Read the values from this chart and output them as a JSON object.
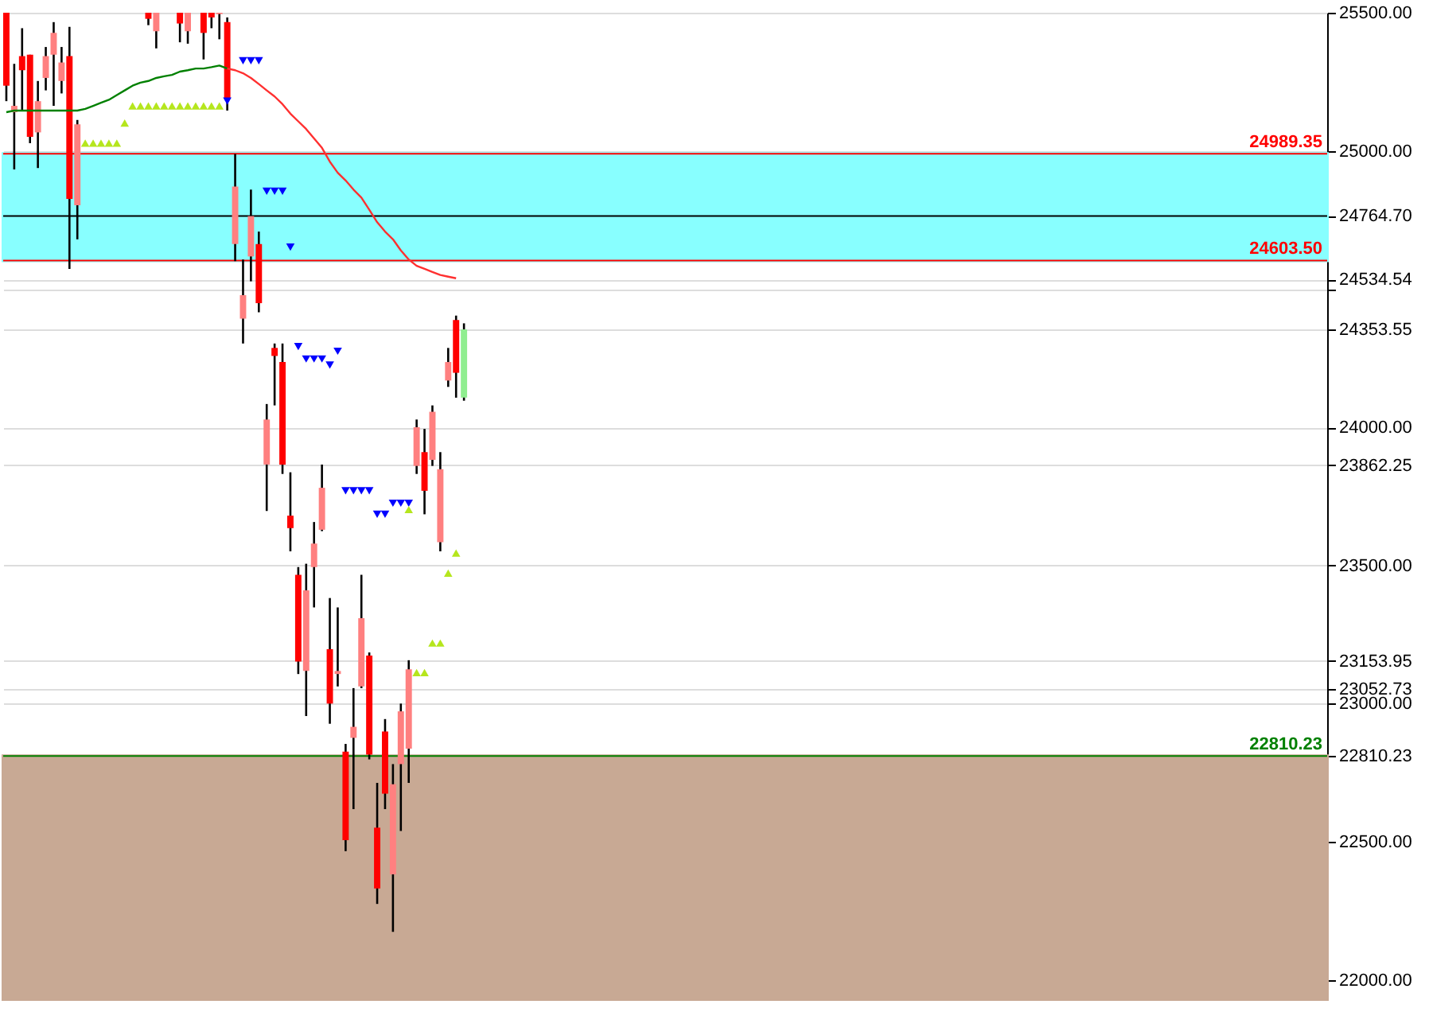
{
  "chart_data": {
    "type": "candlestick",
    "categories": [
      null,
      null,
      null,
      null,
      null,
      null,
      null,
      null,
      null,
      null,
      null,
      null,
      null,
      null,
      null,
      null,
      null,
      null,
      null,
      null,
      null,
      null,
      null,
      null,
      null,
      null,
      null,
      null,
      null,
      null,
      null,
      null,
      null,
      null,
      null,
      null,
      null,
      null,
      null,
      null,
      null,
      null,
      null,
      null,
      null,
      null,
      null,
      null,
      null,
      null,
      null,
      null,
      null,
      null,
      null,
      null,
      null,
      null,
      null,
      null,
      null,
      null,
      null,
      null,
      null,
      null,
      null,
      null,
      null,
      null,
      null,
      null,
      null,
      null,
      null,
      null,
      null,
      null,
      null,
      null,
      null,
      null,
      null,
      null,
      null,
      null,
      null,
      null,
      null,
      null,
      null,
      null,
      null,
      null,
      null,
      null,
      null,
      null,
      null,
      null,
      null,
      null,
      null,
      null,
      null,
      null,
      null,
      null,
      null,
      null,
      null,
      null,
      null,
      null,
      null,
      null,
      null,
      null,
      null,
      null,
      null,
      null,
      null,
      null,
      null,
      null,
      null,
      null,
      null,
      null,
      null,
      null,
      null,
      null,
      null,
      null,
      null,
      null,
      null,
      null,
      null,
      null,
      null,
      null,
      null,
      null,
      null,
      null,
      null,
      null,
      null,
      null,
      null,
      null,
      null,
      null,
      null,
      null,
      null,
      null,
      null,
      null,
      null,
      null,
      null,
      null,
      null,
      null
    ],
    "ohlc": [
      [
        25500,
        25500,
        25180,
        25236
      ],
      [
        25140,
        25315,
        24933,
        25163
      ],
      [
        25343,
        25444,
        25146,
        25292
      ],
      [
        25348,
        25348,
        25028,
        25051
      ],
      [
        25067,
        25253,
        24938,
        25180
      ],
      [
        25264,
        25376,
        25219,
        25343
      ],
      [
        25348,
        25466,
        25163,
        25427
      ],
      [
        25253,
        25376,
        25208,
        25320
      ],
      [
        25343,
        25449,
        24573,
        24826
      ],
      [
        24803,
        25112,
        24680,
        25096
      ],
      null,
      null,
      null,
      null,
      null,
      null,
      null,
      null,
      [
        25500,
        25500,
        25455,
        25478
      ],
      [
        25433,
        25500,
        25371,
        25500
      ],
      null,
      null,
      [
        25500,
        25500,
        25393,
        25461
      ],
      [
        25433,
        25500,
        25388,
        25500
      ],
      null,
      [
        25500,
        25500,
        25331,
        25427
      ],
      [
        25500,
        25500,
        25444,
        25483
      ],
      [
        25495,
        25500,
        25404,
        25500
      ],
      [
        25466,
        25483,
        25146,
        25191
      ],
      [
        24663,
        24989,
        24601,
        24871
      ],
      [
        24393,
        24607,
        24303,
        24478
      ],
      [
        24618,
        24860,
        24528,
        24764
      ],
      [
        24663,
        24708,
        24416,
        24449
      ],
      [
        23865,
        24084,
        23697,
        24028
      ],
      [
        24287,
        24303,
        24079,
        24258
      ],
      [
        24236,
        24303,
        23831,
        23865
      ],
      [
        23680,
        23837,
        23551,
        23635
      ],
      [
        23466,
        23494,
        23107,
        23152
      ],
      [
        23118,
        23506,
        22955,
        23410
      ],
      [
        23494,
        23657,
        23348,
        23579
      ],
      [
        23629,
        23865,
        23624,
        23781
      ],
      [
        23197,
        23382,
        22927,
        23000
      ],
      [
        23107,
        23348,
        23062,
        23118
      ],
      [
        22826,
        22854,
        22466,
        22506
      ],
      [
        22876,
        23056,
        22618,
        22916
      ],
      [
        23062,
        23466,
        23056,
        23309
      ],
      [
        23174,
        23185,
        22798,
        22815
      ],
      [
        22551,
        22713,
        22275,
        22331
      ],
      [
        22899,
        22944,
        22618,
        22674
      ],
      [
        22382,
        22781,
        22174,
        22708
      ],
      [
        22781,
        23000,
        22539,
        22972
      ],
      [
        22837,
        23157,
        22713,
        23124
      ],
      [
        23860,
        24028,
        23831,
        24000
      ],
      [
        23910,
        23994,
        23685,
        23770
      ],
      [
        23882,
        24079,
        23860,
        24056
      ],
      [
        23584,
        23910,
        23551,
        23848
      ],
      [
        24169,
        24287,
        24146,
        24236
      ],
      [
        24388,
        24404,
        24107,
        24197
      ],
      [
        24107,
        24376,
        24096,
        24354
      ],
      null,
      null,
      null,
      null,
      null,
      null,
      null,
      null,
      null,
      null,
      null,
      null,
      null,
      null,
      null,
      null,
      null,
      null,
      null,
      null,
      null,
      null,
      null,
      null,
      null,
      null,
      null,
      null,
      null,
      null,
      null,
      null,
      null,
      null,
      null,
      null,
      null,
      null,
      null,
      null,
      null,
      null,
      null,
      null,
      null,
      null,
      null,
      null,
      null,
      null,
      null,
      null,
      null,
      null,
      null,
      null,
      null,
      null,
      null,
      null,
      null,
      null,
      null,
      null,
      null,
      null,
      null,
      null,
      null,
      null,
      null,
      null,
      null,
      null,
      null,
      null,
      null,
      null,
      null,
      null,
      null,
      null,
      null,
      null,
      null,
      null,
      null,
      null,
      null,
      null,
      null,
      null,
      null,
      null,
      null,
      null,
      null,
      null,
      null,
      null,
      null,
      null,
      null,
      null,
      null,
      null,
      null,
      null,
      null
    ],
    "colors": [
      "#ff0000",
      "#ff8080",
      "#ff0000",
      "#ff0000",
      "#ff8080",
      "#ff8080",
      "#ff8080",
      "#ff8080",
      "#ff0000",
      "#ff8080",
      null,
      null,
      null,
      null,
      null,
      null,
      null,
      null,
      "#ff0000",
      "#ff8080",
      null,
      null,
      "#ff0000",
      "#ff8080",
      null,
      "#ff0000",
      "#ff0000",
      "#ff8080",
      "#ff0000",
      "#ff8080",
      "#ff8080",
      "#ff8080",
      "#ff0000",
      "#ff8080",
      "#ff0000",
      "#ff0000",
      "#ff0000",
      "#ff0000",
      "#ff8080",
      "#ff8080",
      "#ff8080",
      "#ff0000",
      "#ff8080",
      "#ff0000",
      "#ff8080",
      "#ff8080",
      "#ff0000",
      "#ff0000",
      "#ff0000",
      "#ff8080",
      "#ff8080",
      "#ff8080",
      "#ff8080",
      "#ff0000",
      "#ff8080",
      "#ff8080",
      "#ff8080",
      "#ff0000",
      "#90ee90",
      null,
      null,
      null,
      null,
      null,
      null,
      null,
      null,
      null,
      null,
      null,
      null,
      null,
      null,
      null,
      null,
      null,
      null,
      null,
      null,
      null,
      null,
      null,
      null,
      null,
      null,
      null,
      null,
      null,
      null,
      null,
      null,
      null,
      null,
      null,
      null,
      null,
      null,
      null,
      null,
      null,
      null,
      null,
      null,
      null,
      null,
      null,
      null,
      null,
      null,
      null,
      null,
      null,
      null,
      null,
      null,
      null,
      null,
      null,
      null,
      null,
      null,
      null,
      null,
      null,
      null,
      null,
      null,
      null,
      null,
      null,
      null,
      null,
      null,
      null,
      null,
      null,
      null,
      null,
      null,
      null,
      null,
      null,
      null,
      null,
      null,
      null,
      null,
      null,
      null,
      null,
      null,
      null,
      null,
      null,
      null,
      null,
      null,
      null,
      null,
      null,
      null,
      null,
      null,
      null,
      null,
      null,
      null,
      null
    ],
    "series": [
      {
        "type": "line",
        "color": "#008000",
        "values": [
          25140,
          25146,
          25146,
          25146,
          25146,
          25146,
          25146,
          25146,
          25146,
          25146,
          25152,
          25163,
          25174,
          25185,
          25202,
          25219,
          25236,
          25247,
          25253,
          25264,
          25270,
          25275,
          25287,
          25292,
          25298,
          25298,
          25303,
          25309,
          25298,
          null,
          null,
          null,
          null,
          null,
          null,
          null,
          null,
          null,
          null,
          null,
          null,
          null,
          null,
          null,
          null,
          null,
          null,
          null,
          null,
          null,
          null,
          null,
          null,
          null,
          null,
          null,
          null,
          null,
          null,
          null,
          null,
          null,
          null,
          null,
          null,
          null,
          null,
          null,
          null,
          null,
          null,
          null,
          null,
          null,
          null,
          null,
          null,
          null,
          null,
          null,
          null,
          null,
          null,
          null,
          null,
          null,
          null,
          null,
          null,
          null,
          null,
          null,
          null,
          null,
          null,
          null,
          null,
          null,
          null,
          null,
          null,
          null,
          null,
          null,
          null,
          null,
          null,
          null,
          null,
          null,
          null,
          null,
          null,
          null,
          null,
          null,
          null,
          null,
          null,
          null,
          null,
          null,
          null,
          null,
          null,
          null,
          null,
          null,
          null,
          null,
          null,
          null,
          null,
          null,
          null,
          null,
          null,
          null,
          null,
          null,
          null,
          null,
          null,
          null,
          null,
          null,
          null,
          null,
          null,
          null,
          null,
          null,
          null,
          null,
          null,
          null,
          null,
          null,
          null,
          null,
          null,
          null,
          null,
          null,
          null,
          null,
          null,
          null
        ]
      },
      {
        "type": "line",
        "color": "#ff3030",
        "values": [
          null,
          null,
          null,
          null,
          null,
          null,
          null,
          null,
          null,
          null,
          null,
          null,
          null,
          null,
          null,
          null,
          null,
          null,
          null,
          null,
          null,
          null,
          null,
          null,
          null,
          null,
          null,
          null,
          25298,
          25292,
          25281,
          25264,
          25242,
          25219,
          25197,
          25169,
          25135,
          25107,
          25079,
          25045,
          25011,
          24961,
          24921,
          24893,
          24860,
          24831,
          24787,
          24742,
          24708,
          24680,
          24640,
          24607,
          24584,
          24573,
          24562,
          24551,
          24545,
          24539,
          null,
          null,
          null,
          null,
          null,
          null,
          null,
          null,
          null,
          null,
          null,
          null,
          null,
          null,
          null,
          null,
          null,
          null,
          null,
          null,
          null,
          null,
          null,
          null,
          null,
          null,
          null,
          null,
          null,
          null,
          null,
          null,
          null,
          null,
          null,
          null,
          null,
          null,
          null,
          null,
          null,
          null,
          null,
          null,
          null,
          null,
          null,
          null,
          null,
          null,
          null,
          null,
          null,
          null,
          null,
          null,
          null,
          null,
          null,
          null,
          null,
          null,
          null,
          null,
          null,
          null,
          null,
          null,
          null,
          null,
          null,
          null,
          null,
          null,
          null,
          null,
          null,
          null,
          null,
          null,
          null,
          null,
          null,
          null,
          null,
          null,
          null,
          null,
          null,
          null,
          null,
          null,
          null,
          null,
          null,
          null,
          null,
          null,
          null,
          null,
          null,
          null,
          null,
          null,
          null,
          null,
          null,
          null,
          null,
          null
        ]
      },
      {
        "type": "scatter",
        "color": "#0000ff",
        "marker": "triangle-down",
        "values": [
          null,
          null,
          null,
          null,
          null,
          null,
          null,
          null,
          null,
          null,
          null,
          null,
          null,
          null,
          null,
          null,
          null,
          null,
          null,
          null,
          null,
          null,
          null,
          null,
          null,
          null,
          null,
          null,
          25180,
          null,
          25326,
          25326,
          25326,
          24854,
          24854,
          24854,
          24652,
          24292,
          24247,
          24247,
          24247,
          24225,
          24275,
          23770,
          23770,
          23770,
          23770,
          23685,
          23685,
          23725,
          23725,
          23725,
          null,
          null,
          null,
          null,
          null,
          null,
          null,
          null,
          null,
          null,
          null,
          null,
          null,
          null,
          null,
          null,
          null,
          null,
          null,
          null,
          null,
          null,
          null,
          null,
          null,
          null,
          null,
          null,
          null,
          null,
          null,
          null,
          null,
          null,
          null,
          null,
          null,
          null,
          null,
          null,
          null,
          null,
          null,
          null,
          null,
          null,
          null,
          null,
          null,
          null,
          null,
          null,
          null,
          null,
          null,
          null,
          null,
          null,
          null,
          null,
          null,
          null,
          null,
          null,
          null,
          null,
          null,
          null,
          null,
          null,
          null,
          null,
          null,
          null,
          null,
          null,
          null,
          null,
          null,
          null,
          null,
          null,
          null,
          null,
          null,
          null,
          null,
          null,
          null,
          null,
          null,
          null,
          null,
          null,
          null,
          null,
          null,
          null,
          null,
          null,
          null,
          null,
          null,
          null,
          null,
          null,
          null,
          null,
          null,
          null,
          null,
          null,
          null,
          null,
          null,
          null
        ]
      },
      {
        "type": "scatter",
        "color": "#b5e61d",
        "marker": "triangle",
        "values": [
          null,
          null,
          null,
          null,
          null,
          null,
          null,
          null,
          null,
          null,
          25028,
          25028,
          25028,
          25028,
          25028,
          25101,
          25163,
          25163,
          25163,
          25163,
          25163,
          25163,
          25163,
          25163,
          25163,
          25163,
          25163,
          25163,
          null,
          null,
          null,
          null,
          null,
          null,
          null,
          null,
          null,
          null,
          null,
          null,
          null,
          null,
          null,
          null,
          null,
          null,
          null,
          null,
          null,
          null,
          null,
          23702,
          23112,
          23112,
          23219,
          23219,
          23472,
          23545,
          null,
          null,
          null,
          null,
          null,
          null,
          null,
          null,
          null,
          null,
          null,
          null,
          null,
          null,
          null,
          null,
          null,
          null,
          null,
          null,
          null,
          null,
          null,
          null,
          null,
          null,
          null,
          null,
          null,
          null,
          null,
          null,
          null,
          null,
          null,
          null,
          null,
          null,
          null,
          null,
          null,
          null,
          null,
          null,
          null,
          null,
          null,
          null,
          null,
          null,
          null,
          null,
          null,
          null,
          null,
          null,
          null,
          null,
          null,
          null,
          null,
          null,
          null,
          null,
          null,
          null,
          null,
          null,
          null,
          null,
          null,
          null,
          null,
          null,
          null,
          null,
          null,
          null,
          null,
          null,
          null,
          null,
          null,
          null,
          null,
          null,
          null,
          null,
          null,
          null,
          null,
          null,
          null,
          null,
          null,
          null,
          null,
          null,
          null,
          null,
          null,
          null,
          null,
          null,
          null,
          null,
          null,
          null,
          null,
          null
        ]
      }
    ],
    "ylim": [
      21930,
      25500
    ],
    "yticks": [
      {
        "value": 22000,
        "label": "22000.00"
      },
      {
        "value": 22500,
        "label": "22500.00"
      },
      {
        "value": 22810.23,
        "label": "22810.23"
      },
      {
        "value": 23000,
        "label": "23000.00"
      },
      {
        "value": 23052.73,
        "label": "23052.73"
      },
      {
        "value": 23153.95,
        "label": "23153.95"
      },
      {
        "value": 23500,
        "label": "23500.00"
      },
      {
        "value": 23862.25,
        "label": "23862.25"
      },
      {
        "value": 24000,
        "label": "24000.00"
      },
      {
        "value": 24353.55,
        "label": "24353.55"
      },
      {
        "value": 24500,
        "label": null
      },
      {
        "value": 24534.54,
        "label": "24534.54"
      },
      {
        "value": 24764.7,
        "label": "24764.70"
      },
      {
        "value": 25000,
        "label": "25000.00"
      },
      {
        "value": 25500,
        "label": "25500.00"
      }
    ],
    "grid": "y",
    "bands": [
      {
        "axis": "y",
        "from": 24603.5,
        "to": 24989.35,
        "color": "#88ffff"
      },
      {
        "axis": "y",
        "from": 21930,
        "to": 22810.23,
        "color": "#c8a994"
      }
    ],
    "ref_lines": [
      {
        "axis": "y",
        "value": 24989.35,
        "label": "24989.35",
        "color": "#ff0000",
        "line_style": "solid"
      },
      {
        "axis": "y",
        "value": 24603.5,
        "label": "24603.50",
        "color": "#ff0000",
        "line_style": "solid"
      },
      {
        "axis": "y",
        "value": 22810.23,
        "label": "22810.23",
        "color": "#008000",
        "line_style": "solid"
      },
      {
        "axis": "y",
        "value": 24764.7,
        "color": "#000000",
        "line_style": "solid"
      }
    ]
  }
}
